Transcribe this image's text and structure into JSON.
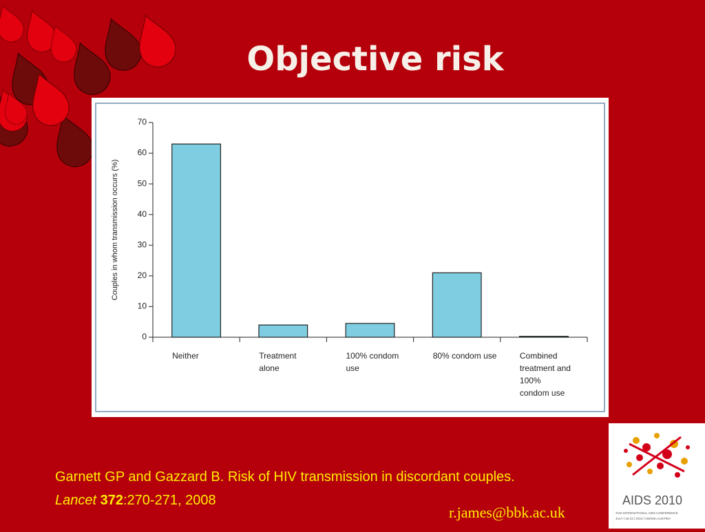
{
  "slide_title": "Objective risk",
  "chart_data": {
    "type": "bar",
    "ylabel": "Couples in whom transmission occurs (%)",
    "categories": [
      "Neither",
      "Treatment alone",
      "100% condom use",
      "80% condom use",
      "Combined treatment and 100% condom use"
    ],
    "values": [
      63,
      4,
      4.5,
      21,
      0.3
    ],
    "color": "#7ecde0",
    "ylim": [
      0,
      70
    ],
    "yticks": [
      0,
      10,
      20,
      30,
      40,
      50,
      60,
      70
    ]
  },
  "citation": {
    "line1": "Garnett GP and Gazzard B. Risk of HIV transmission in discordant couples.",
    "journal": "Lancet",
    "volume": "372",
    "pages": ":270-271, 2008"
  },
  "email": "r.james@bbk.ac.uk",
  "logo": {
    "name": "AIDS 2010",
    "subtitle": "XVIII INTERNATIONAL AIDS CONFERENCE",
    "dates": "JULY | 18-23 | 2010 | VIENNA AUSTRIA"
  }
}
